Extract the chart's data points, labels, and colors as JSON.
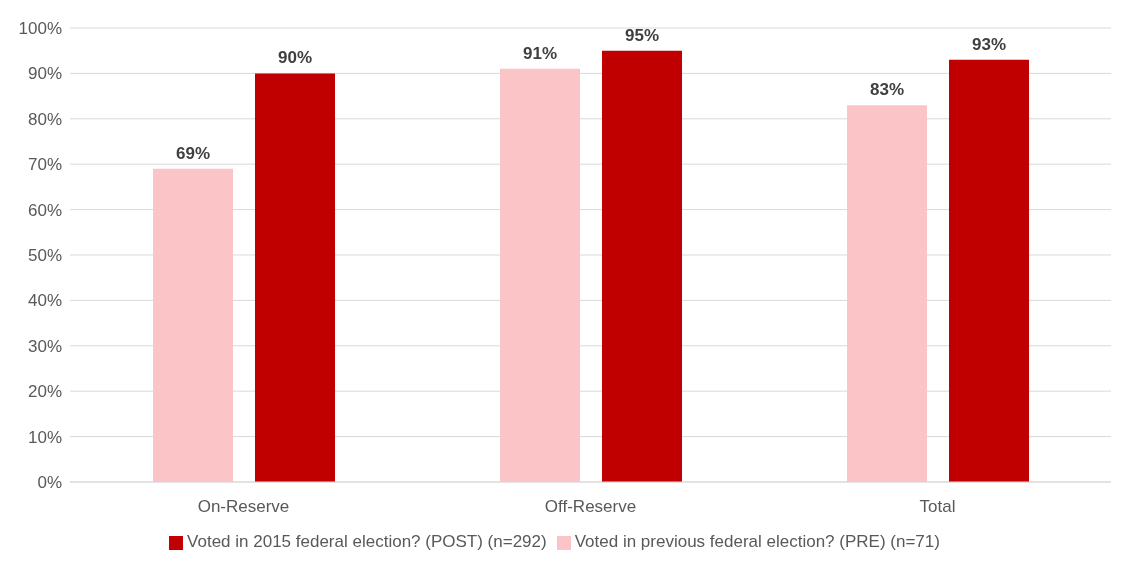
{
  "chart_data": {
    "type": "bar",
    "categories": [
      "On-Reserve",
      "Off-Reserve",
      "Total"
    ],
    "series": [
      {
        "name": "Voted in previous federal election? (PRE) (n=71)",
        "color": "#fbc4c6",
        "values": [
          69,
          91,
          83
        ],
        "value_labels": [
          "69%",
          "91%",
          "83%"
        ]
      },
      {
        "name": "Voted in 2015 federal election? (POST) (n=292)",
        "color": "#c00000",
        "values": [
          90,
          95,
          93
        ],
        "value_labels": [
          "90%",
          "95%",
          "93%"
        ]
      }
    ],
    "ylim": [
      0,
      100
    ],
    "yticks": [
      {
        "value": 0,
        "label": "0%"
      },
      {
        "value": 10,
        "label": "10%"
      },
      {
        "value": 20,
        "label": "20%"
      },
      {
        "value": 30,
        "label": "30%"
      },
      {
        "value": 40,
        "label": "40%"
      },
      {
        "value": 50,
        "label": "50%"
      },
      {
        "value": 60,
        "label": "60%"
      },
      {
        "value": 70,
        "label": "70%"
      },
      {
        "value": 80,
        "label": "80%"
      },
      {
        "value": 90,
        "label": "90%"
      },
      {
        "value": 100,
        "label": "100%"
      }
    ],
    "grid": "y",
    "legend": "bottom"
  }
}
